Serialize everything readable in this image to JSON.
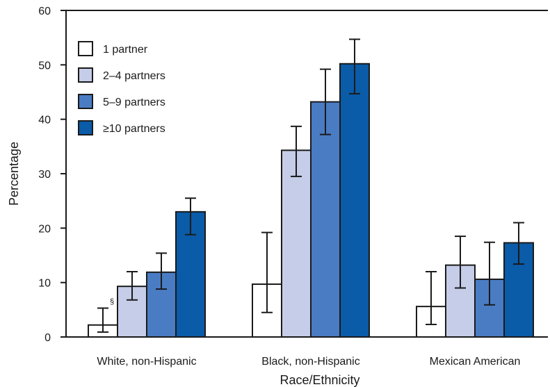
{
  "chart_data": {
    "type": "bar",
    "xlabel": "Race/Ethnicity",
    "ylabel": "Percentage",
    "ylim": [
      0,
      60
    ],
    "yticks": [
      0,
      10,
      20,
      30,
      40,
      50,
      60
    ],
    "grid": false,
    "legend_position": "top-left",
    "categories": [
      "White, non-Hispanic",
      "Black, non-Hispanic",
      "Mexican American"
    ],
    "series": [
      {
        "name": "1 partner",
        "color": "#ffffff",
        "values": [
          2.2,
          9.7,
          5.6
        ],
        "ci_low": [
          0.9,
          4.5,
          2.3
        ],
        "ci_high": [
          5.3,
          19.2,
          12.0
        ]
      },
      {
        "name": "2–4 partners",
        "color": "#c5cde8",
        "values": [
          9.3,
          34.3,
          13.2
        ],
        "ci_low": [
          6.8,
          29.5,
          9.0
        ],
        "ci_high": [
          12.0,
          38.7,
          18.5
        ]
      },
      {
        "name": "5–9 partners",
        "color": "#4a7cc4",
        "values": [
          11.9,
          43.2,
          10.6
        ],
        "ci_low": [
          8.8,
          37.2,
          5.9
        ],
        "ci_high": [
          15.4,
          49.2,
          17.4
        ]
      },
      {
        "name": "≥10 partners",
        "color": "#0a5ba8",
        "values": [
          23.0,
          50.2,
          17.3
        ],
        "ci_low": [
          18.8,
          44.7,
          13.4
        ],
        "ci_high": [
          25.5,
          54.7,
          21.0
        ]
      }
    ],
    "annotations": [
      {
        "text": "§",
        "category": 0,
        "series": 0
      }
    ]
  }
}
